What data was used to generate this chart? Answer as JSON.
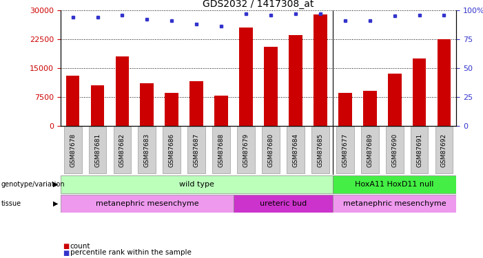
{
  "title": "GDS2032 / 1417308_at",
  "samples": [
    "GSM87678",
    "GSM87681",
    "GSM87682",
    "GSM87683",
    "GSM87686",
    "GSM87687",
    "GSM87688",
    "GSM87679",
    "GSM87680",
    "GSM87684",
    "GSM87685",
    "GSM87677",
    "GSM87689",
    "GSM87690",
    "GSM87691",
    "GSM87692"
  ],
  "counts": [
    13000,
    10500,
    18000,
    11000,
    8500,
    11500,
    7800,
    25500,
    20500,
    23500,
    29000,
    8500,
    9000,
    13500,
    17500,
    22500
  ],
  "percentile": [
    94,
    94,
    96,
    92,
    91,
    88,
    86,
    97,
    96,
    97,
    97,
    91,
    91,
    95,
    96,
    96
  ],
  "ylim_left": [
    0,
    30000
  ],
  "ylim_right": [
    0,
    100
  ],
  "yticks_left": [
    0,
    7500,
    15000,
    22500,
    30000
  ],
  "yticks_right": [
    0,
    25,
    50,
    75,
    100
  ],
  "bar_color": "#cc0000",
  "dot_color": "#3333cc",
  "genotype_groups": [
    {
      "label": "wild type",
      "start": 0,
      "end": 11,
      "color": "#bbffbb"
    },
    {
      "label": "HoxA11 HoxD11 null",
      "start": 11,
      "end": 16,
      "color": "#44ee44"
    }
  ],
  "tissue_groups": [
    {
      "label": "metanephric mesenchyme",
      "start": 0,
      "end": 7,
      "color": "#ee99ee"
    },
    {
      "label": "ureteric bud",
      "start": 7,
      "end": 11,
      "color": "#cc33cc"
    },
    {
      "label": "metanephric mesenchyme",
      "start": 11,
      "end": 16,
      "color": "#ee99ee"
    }
  ],
  "legend_count_color": "#cc0000",
  "legend_dot_color": "#3333cc",
  "tick_label_color_left": "#cc0000",
  "tick_label_color_right": "#3333cc",
  "sep_index": 11
}
